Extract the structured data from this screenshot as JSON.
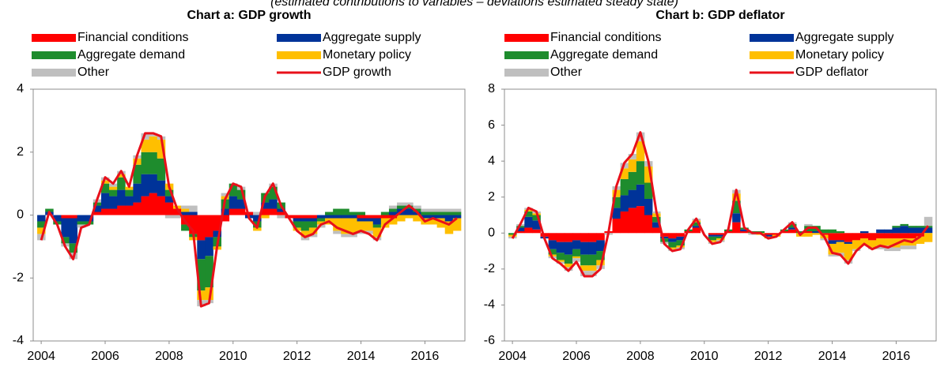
{
  "subtitle": "(estimated contributions to variables – deviations estimated steady state)",
  "chart_data": [
    {
      "type": "bar",
      "title": "Chart a: GDP growth",
      "x": [
        2004,
        2004.25,
        2004.5,
        2004.75,
        2005,
        2005.25,
        2005.5,
        2005.75,
        2006,
        2006.25,
        2006.5,
        2006.75,
        2007,
        2007.25,
        2007.5,
        2007.75,
        2008,
        2008.25,
        2008.5,
        2008.75,
        2009,
        2009.25,
        2009.5,
        2009.75,
        2010,
        2010.25,
        2010.5,
        2010.75,
        2011,
        2011.25,
        2011.5,
        2011.75,
        2012,
        2012.25,
        2012.5,
        2012.75,
        2013,
        2013.25,
        2013.5,
        2013.75,
        2014,
        2014.25,
        2014.5,
        2014.75,
        2015,
        2015.25,
        2015.5,
        2015.75,
        2016,
        2016.25,
        2016.5,
        2016.75,
        2017
      ],
      "xlim": [
        2003.75,
        2017.25
      ],
      "xticks": [
        2004,
        2006,
        2008,
        2010,
        2012,
        2014,
        2016
      ],
      "ylim": [
        -4,
        4
      ],
      "yticks": [
        -4,
        -2,
        0,
        2,
        4
      ],
      "series": [
        {
          "name": "Financial conditions",
          "color": "#ff0000",
          "values": [
            0,
            0,
            0,
            -0.1,
            -0.1,
            0,
            0,
            0.1,
            0.2,
            0.2,
            0.3,
            0.3,
            0.4,
            0.6,
            0.7,
            0.6,
            0.4,
            0.2,
            -0.3,
            -0.6,
            -0.8,
            -0.7,
            -0.5,
            -0.2,
            0.2,
            0.2,
            0.1,
            0.0,
            0.2,
            0.2,
            0.1,
            -0.1,
            -0.1,
            -0.1,
            -0.1,
            0,
            0,
            0,
            0,
            0,
            -0.1,
            -0.1,
            -0.1,
            -0.1,
            -0.1,
            0,
            0,
            0,
            0,
            0,
            0,
            0,
            0
          ]
        },
        {
          "name": "Aggregate supply",
          "color": "#003399",
          "values": [
            -0.2,
            0.1,
            -0.2,
            -0.6,
            -0.8,
            -0.2,
            -0.2,
            0.2,
            0.5,
            0.4,
            0.5,
            0.3,
            0.6,
            0.7,
            0.6,
            0.5,
            0.2,
            0,
            0.1,
            0.1,
            -0.6,
            -0.6,
            -0.2,
            0.2,
            0.4,
            0.3,
            -0.1,
            -0.2,
            0.2,
            0.3,
            0.1,
            0,
            -0.1,
            -0.1,
            -0.1,
            -0.1,
            -0.1,
            -0.1,
            -0.1,
            -0.1,
            -0.1,
            -0.1,
            -0.2,
            0,
            0.1,
            0.2,
            0.2,
            0.1,
            -0.1,
            -0.1,
            -0.1,
            -0.2,
            -0.1
          ]
        },
        {
          "name": "Aggregate demand",
          "color": "#1e8c2d",
          "values": [
            -0.2,
            0.1,
            -0.1,
            -0.2,
            -0.3,
            -0.1,
            -0.1,
            0.1,
            0.3,
            0.2,
            0.4,
            0.2,
            0.6,
            0.7,
            0.7,
            0.7,
            0.2,
            0,
            -0.2,
            -0.1,
            -1.0,
            -1.0,
            -0.3,
            0.3,
            0.4,
            0.3,
            0,
            -0.2,
            0.3,
            0.4,
            0.2,
            0,
            -0.2,
            -0.3,
            -0.2,
            -0.1,
            0.1,
            0.2,
            0.2,
            0.1,
            0.1,
            0,
            -0.1,
            0.1,
            0.1,
            0.1,
            0.1,
            0.1,
            0.1,
            0.1,
            0.1,
            0.1,
            0.1
          ]
        },
        {
          "name": "Monetary policy",
          "color": "#ffbf00",
          "values": [
            -0.2,
            0,
            0,
            0,
            0,
            0,
            0,
            0,
            0.1,
            0.1,
            0.1,
            0.1,
            0.2,
            0.4,
            0.5,
            0.6,
            0.2,
            0.1,
            0.1,
            -0.1,
            -0.3,
            -0.4,
            -0.1,
            0.1,
            0,
            0,
            0,
            -0.1,
            -0.1,
            0,
            0,
            0,
            -0.1,
            -0.2,
            -0.2,
            -0.1,
            -0.2,
            -0.4,
            -0.5,
            -0.5,
            -0.3,
            -0.3,
            -0.3,
            -0.3,
            -0.2,
            -0.2,
            -0.1,
            -0.2,
            -0.2,
            -0.2,
            -0.3,
            -0.4,
            -0.4
          ]
        },
        {
          "name": "Other",
          "color": "#bfbfbf",
          "values": [
            -0.2,
            0,
            0,
            -0.1,
            -0.2,
            -0.1,
            0,
            0.1,
            0.1,
            0.1,
            0.1,
            0,
            0.1,
            0.2,
            0.1,
            0.1,
            -0.1,
            -0.1,
            0.1,
            0.2,
            -0.2,
            -0.1,
            0,
            0.1,
            0,
            0.1,
            0,
            0.1,
            0,
            0.1,
            -0.1,
            0,
            0,
            -0.1,
            -0.1,
            -0.1,
            0,
            -0.1,
            -0.1,
            -0.1,
            -0.1,
            -0.1,
            -0.1,
            0,
            0.1,
            0.1,
            0.1,
            0.1,
            0.1,
            0.1,
            0.1,
            0.1,
            0.1
          ]
        }
      ],
      "line": {
        "name": "GDP growth",
        "color": "#e8101a",
        "values": [
          -0.8,
          0.1,
          -0.3,
          -1.0,
          -1.4,
          -0.4,
          -0.3,
          0.5,
          1.2,
          1.0,
          1.4,
          0.9,
          1.9,
          2.6,
          2.6,
          2.5,
          0.9,
          0.2,
          -0.2,
          -0.5,
          -2.9,
          -2.8,
          -1.0,
          0.5,
          1.0,
          0.9,
          -0.1,
          -0.4,
          0.6,
          1.0,
          0.3,
          -0.1,
          -0.5,
          -0.7,
          -0.6,
          -0.3,
          -0.2,
          -0.4,
          -0.5,
          -0.6,
          -0.5,
          -0.6,
          -0.8,
          -0.3,
          -0.1,
          0.1,
          0.3,
          0.1,
          -0.2,
          -0.1,
          -0.2,
          -0.3,
          -0.1
        ]
      }
    },
    {
      "type": "bar",
      "title": "Chart b: GDP deflator",
      "x": [
        2004,
        2004.25,
        2004.5,
        2004.75,
        2005,
        2005.25,
        2005.5,
        2005.75,
        2006,
        2006.25,
        2006.5,
        2006.75,
        2007,
        2007.25,
        2007.5,
        2007.75,
        2008,
        2008.25,
        2008.5,
        2008.75,
        2009,
        2009.25,
        2009.5,
        2009.75,
        2010,
        2010.25,
        2010.5,
        2010.75,
        2011,
        2011.25,
        2011.5,
        2011.75,
        2012,
        2012.25,
        2012.5,
        2012.75,
        2013,
        2013.25,
        2013.5,
        2013.75,
        2014,
        2014.25,
        2014.5,
        2014.75,
        2015,
        2015.25,
        2015.5,
        2015.75,
        2016,
        2016.25,
        2016.5,
        2016.75,
        2017
      ],
      "xlim": [
        2003.75,
        2017.25
      ],
      "xticks": [
        2004,
        2006,
        2008,
        2010,
        2012,
        2014,
        2016
      ],
      "ylim": [
        -6,
        8
      ],
      "yticks": [
        -6,
        -4,
        -2,
        0,
        2,
        4,
        6,
        8
      ],
      "series": [
        {
          "name": "Financial conditions",
          "color": "#ff0000",
          "values": [
            0,
            0.1,
            0.3,
            0.2,
            -0.2,
            -0.4,
            -0.5,
            -0.5,
            -0.4,
            -0.5,
            -0.5,
            -0.4,
            0.1,
            0.8,
            1.2,
            1.4,
            1.5,
            1.0,
            0.3,
            -0.2,
            -0.3,
            -0.2,
            0.1,
            0.3,
            0,
            -0.1,
            -0.1,
            0.1,
            0.6,
            0.1,
            0,
            0,
            -0.1,
            -0.1,
            0.1,
            0.2,
            0,
            0.1,
            0,
            -0.1,
            -0.4,
            -0.4,
            -0.5,
            -0.4,
            -0.3,
            -0.4,
            -0.3,
            -0.3,
            -0.3,
            -0.3,
            -0.3,
            -0.2,
            0
          ]
        },
        {
          "name": "Aggregate supply",
          "color": "#003399",
          "values": [
            0,
            0.2,
            0.6,
            0.5,
            -0.1,
            -0.5,
            -0.6,
            -0.7,
            -0.5,
            -0.7,
            -0.7,
            -0.6,
            0,
            0.6,
            0.9,
            1.0,
            1.2,
            0.9,
            0.3,
            -0.1,
            -0.2,
            -0.2,
            0,
            0.1,
            0,
            -0.1,
            -0.1,
            0,
            0.5,
            0.1,
            0,
            0,
            -0.1,
            0,
            0,
            0.1,
            0,
            0,
            0.1,
            0,
            -0.2,
            -0.1,
            -0.1,
            0,
            0.1,
            0,
            0.2,
            0.2,
            0.3,
            0.4,
            0.3,
            0.3,
            0.3
          ]
        },
        {
          "name": "Aggregate demand",
          "color": "#1e8c2d",
          "values": [
            -0.1,
            0.1,
            0.3,
            0.3,
            0,
            -0.3,
            -0.4,
            -0.5,
            -0.4,
            -0.6,
            -0.6,
            -0.5,
            0,
            0.6,
            0.9,
            1.0,
            1.3,
            0.9,
            0.3,
            -0.2,
            -0.3,
            -0.3,
            0.1,
            0.2,
            0,
            -0.2,
            -0.1,
            0.1,
            0.7,
            0.1,
            0.1,
            0.1,
            0,
            0,
            0.1,
            0.2,
            0.1,
            0.3,
            0.3,
            0.2,
            0.2,
            0.1,
            0,
            0,
            0,
            0,
            0,
            0,
            0.1,
            0.1,
            0.1,
            0.1,
            0.1
          ]
        },
        {
          "name": "Monetary policy",
          "color": "#ffbf00",
          "values": [
            -0.1,
            0,
            0.1,
            0.1,
            0,
            -0.1,
            -0.1,
            -0.2,
            -0.1,
            -0.3,
            -0.3,
            -0.3,
            0,
            0.4,
            0.6,
            0.7,
            1.1,
            0.9,
            0.2,
            0,
            -0.1,
            -0.1,
            0,
            0.1,
            0,
            -0.1,
            -0.1,
            0,
            0.4,
            0,
            0,
            -0.1,
            -0.1,
            -0.1,
            0,
            0,
            -0.2,
            -0.2,
            -0.1,
            -0.2,
            -0.6,
            -0.6,
            -0.9,
            -0.5,
            -0.4,
            -0.4,
            -0.4,
            -0.4,
            -0.5,
            -0.4,
            -0.4,
            -0.4,
            -0.5
          ]
        },
        {
          "name": "Other",
          "color": "#bfbfbf",
          "values": [
            -0.1,
            0.1,
            0.1,
            0.1,
            0,
            -0.1,
            -0.1,
            -0.2,
            -0.2,
            -0.3,
            -0.3,
            -0.2,
            -0.1,
            0.2,
            0.3,
            0.3,
            0.5,
            0.3,
            0.1,
            -0.1,
            -0.1,
            -0.1,
            0,
            0.1,
            0,
            -0.1,
            -0.1,
            0,
            0.2,
            0,
            -0.1,
            0,
            0,
            0,
            0,
            0.1,
            0,
            0.1,
            0,
            -0.1,
            -0.1,
            -0.2,
            -0.2,
            -0.1,
            0,
            -0.1,
            -0.2,
            -0.3,
            -0.2,
            -0.2,
            -0.2,
            0,
            0.5
          ]
        }
      ],
      "line": {
        "name": "GDP deflator",
        "color": "#e8101a",
        "values": [
          -0.3,
          0.5,
          1.4,
          1.2,
          -0.3,
          -1.4,
          -1.7,
          -2.1,
          -1.6,
          -2.4,
          -2.4,
          -2.0,
          0.0,
          2.6,
          3.9,
          4.4,
          5.6,
          4.0,
          1.2,
          -0.6,
          -1.0,
          -0.9,
          0.2,
          0.8,
          -0.1,
          -0.6,
          -0.5,
          0.2,
          2.4,
          0.3,
          0.0,
          0.0,
          -0.3,
          -0.2,
          0.2,
          0.6,
          -0.1,
          0.3,
          0.3,
          -0.2,
          -1.1,
          -1.2,
          -1.7,
          -1.0,
          -0.6,
          -0.9,
          -0.7,
          -0.8,
          -0.6,
          -0.4,
          -0.5,
          -0.2,
          0.4
        ]
      }
    }
  ]
}
